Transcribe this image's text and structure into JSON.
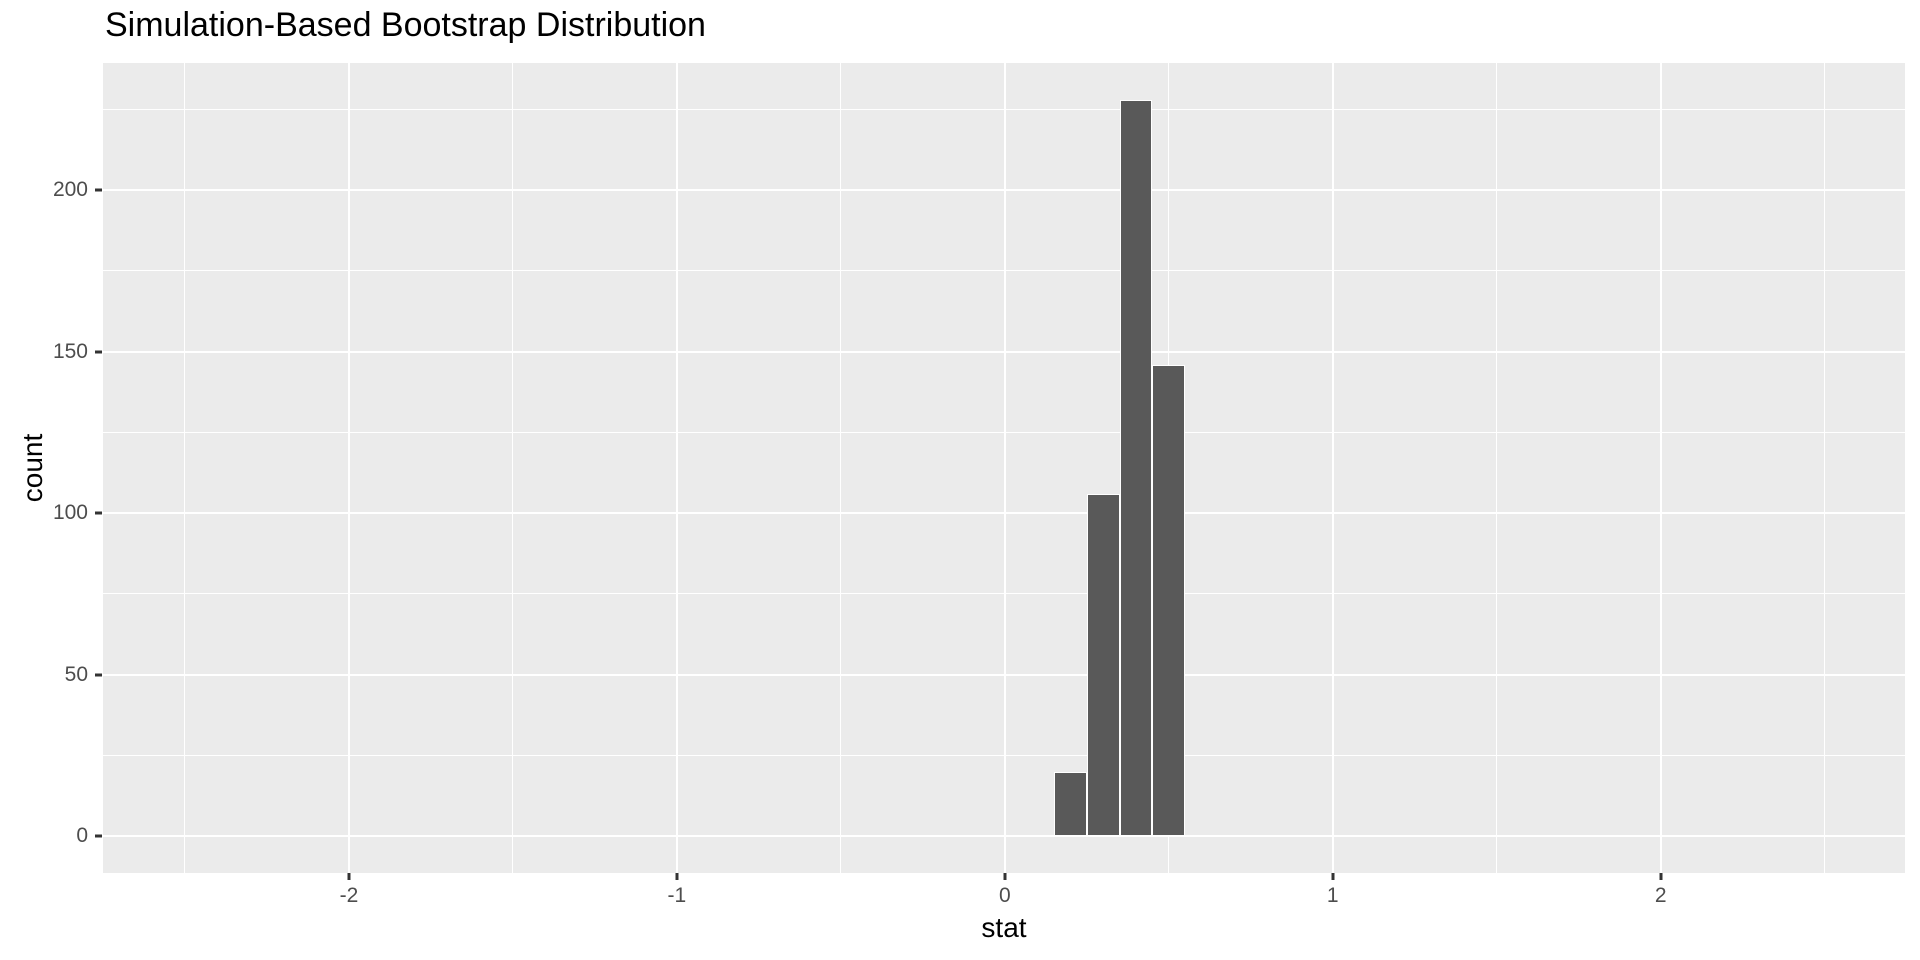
{
  "title": "Simulation-Based Bootstrap Distribution",
  "chart_data": {
    "type": "bar",
    "subtype": "histogram",
    "title": "Simulation-Based Bootstrap Distribution",
    "xlabel": "stat",
    "ylabel": "count",
    "bins": [
      {
        "x0": 0.15,
        "x1": 0.25,
        "count": 20
      },
      {
        "x0": 0.25,
        "x1": 0.35,
        "count": 106
      },
      {
        "x0": 0.35,
        "x1": 0.45,
        "count": 228
      },
      {
        "x0": 0.45,
        "x1": 0.55,
        "count": 146
      }
    ],
    "x_major_ticks": [
      -2,
      -1,
      0,
      1,
      2
    ],
    "x_tick_labels": [
      "-2",
      "-1",
      "0",
      "1",
      "2"
    ],
    "x_minor_gridlines": [
      -2.5,
      -1.5,
      -0.5,
      0.5,
      1.5,
      2.5
    ],
    "y_major_ticks": [
      0,
      50,
      100,
      150,
      200
    ],
    "y_tick_labels": [
      "0",
      "50",
      "100",
      "150",
      "200"
    ],
    "y_minor_gridlines": [
      25,
      75,
      125,
      175,
      225
    ],
    "xlim": [
      -2.75,
      2.745
    ],
    "ylim": [
      -11.4,
      239.4
    ],
    "grid": "on",
    "legend": "none",
    "colors": {
      "bar_fill": "#595959",
      "bar_stroke": "#FFFFFF",
      "panel_background": "#EBEBEB",
      "gridline": "#FFFFFF",
      "tick_text": "#4D4D4D",
      "axis_title_text": "#000000",
      "title_text": "#000000",
      "tick_mark": "#333333",
      "figure_background": "#FFFFFF"
    }
  }
}
